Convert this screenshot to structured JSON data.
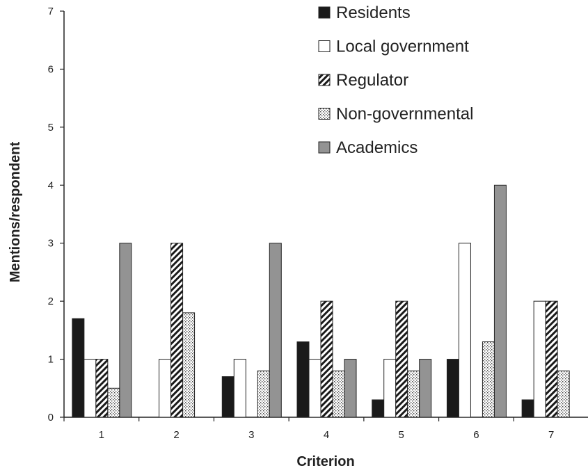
{
  "chart_data": {
    "type": "bar",
    "xlabel": "Criterion",
    "ylabel": "Mentions/respondent",
    "ylim": [
      0,
      7
    ],
    "yticks": [
      0,
      1,
      2,
      3,
      4,
      5,
      6,
      7
    ],
    "categories": [
      "1",
      "2",
      "3",
      "4",
      "5",
      "6",
      "7"
    ],
    "legend_position": "top-right",
    "grid": false,
    "series": [
      {
        "name": "Residents",
        "fill": "solid-black",
        "values": [
          1.7,
          0,
          0.7,
          1.3,
          0.3,
          1.0,
          0.3
        ]
      },
      {
        "name": "Local government",
        "fill": "white",
        "values": [
          1.0,
          1.0,
          1.0,
          1.0,
          1.0,
          3.0,
          2.0
        ]
      },
      {
        "name": "Regulator",
        "fill": "diagonal-hatch",
        "values": [
          1.0,
          3.0,
          0,
          2.0,
          2.0,
          0,
          2.0
        ]
      },
      {
        "name": "Non-governmental",
        "fill": "dotted",
        "values": [
          0.5,
          1.8,
          0.8,
          0.8,
          0.8,
          1.3,
          0.8
        ]
      },
      {
        "name": "Academics",
        "fill": "solid-gray",
        "values": [
          3.0,
          0,
          3.0,
          1.0,
          1.0,
          4.0,
          0
        ]
      }
    ]
  }
}
